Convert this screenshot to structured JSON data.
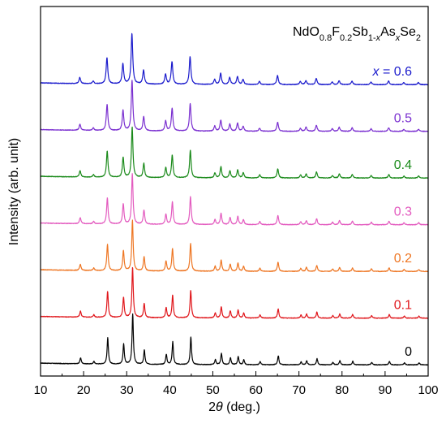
{
  "chart_data": {
    "type": "line",
    "title": "NdO0.8F0.2Sb1-xAsxSe2",
    "formula_parts": [
      {
        "text": "NdO",
        "sub": false,
        "italic": false
      },
      {
        "text": "0.8",
        "sub": true,
        "italic": false
      },
      {
        "text": "F",
        "sub": false,
        "italic": false
      },
      {
        "text": "0.2",
        "sub": true,
        "italic": false
      },
      {
        "text": "Sb",
        "sub": false,
        "italic": false
      },
      {
        "text": "1-",
        "sub": true,
        "italic": false
      },
      {
        "text": "x",
        "sub": true,
        "italic": true
      },
      {
        "text": "As",
        "sub": false,
        "italic": false
      },
      {
        "text": "x",
        "sub": true,
        "italic": true
      },
      {
        "text": "Se",
        "sub": false,
        "italic": false
      },
      {
        "text": "2",
        "sub": true,
        "italic": false
      }
    ],
    "xlabel_italic": "θ",
    "xlabel_prefix": "2",
    "xlabel_suffix": " (deg.)",
    "ylabel": "Intensity (arb. unit)",
    "xlim": [
      10,
      100
    ],
    "x_ticks": [
      10,
      20,
      30,
      40,
      50,
      60,
      70,
      80,
      90,
      100
    ],
    "y_ticks_shown": false,
    "grid": false,
    "x_label_prefix": "x",
    "x_label_equals": " = ",
    "series": [
      {
        "name": "0",
        "color": "#000000",
        "offset": 0
      },
      {
        "name": "0.1",
        "color": "#e0161b",
        "offset": 1
      },
      {
        "name": "0.2",
        "color": "#ee7623",
        "offset": 2
      },
      {
        "name": "0.3",
        "color": "#e35bbf",
        "offset": 3
      },
      {
        "name": "0.4",
        "color": "#1a8a1a",
        "offset": 4
      },
      {
        "name": "0.5",
        "color": "#7a2fd0",
        "offset": 5
      },
      {
        "name": "0.6",
        "color": "#1a1acc",
        "offset": 6
      }
    ],
    "peaks": [
      {
        "x": 19.3,
        "h": 0.12
      },
      {
        "x": 22.4,
        "h": 0.05
      },
      {
        "x": 25.6,
        "h": 0.52
      },
      {
        "x": 29.3,
        "h": 0.4
      },
      {
        "x": 31.4,
        "h": 1.0
      },
      {
        "x": 34.1,
        "h": 0.28
      },
      {
        "x": 39.2,
        "h": 0.2
      },
      {
        "x": 40.7,
        "h": 0.45
      },
      {
        "x": 44.9,
        "h": 0.55
      },
      {
        "x": 50.6,
        "h": 0.1
      },
      {
        "x": 52.0,
        "h": 0.22
      },
      {
        "x": 54.1,
        "h": 0.14
      },
      {
        "x": 55.9,
        "h": 0.16
      },
      {
        "x": 57.2,
        "h": 0.1
      },
      {
        "x": 61.0,
        "h": 0.06
      },
      {
        "x": 65.2,
        "h": 0.18
      },
      {
        "x": 70.5,
        "h": 0.06
      },
      {
        "x": 71.8,
        "h": 0.08
      },
      {
        "x": 74.2,
        "h": 0.12
      },
      {
        "x": 77.9,
        "h": 0.05
      },
      {
        "x": 79.5,
        "h": 0.08
      },
      {
        "x": 82.5,
        "h": 0.07
      },
      {
        "x": 86.9,
        "h": 0.05
      },
      {
        "x": 91.0,
        "h": 0.07
      },
      {
        "x": 94.5,
        "h": 0.04
      },
      {
        "x": 97.9,
        "h": 0.04
      }
    ]
  }
}
